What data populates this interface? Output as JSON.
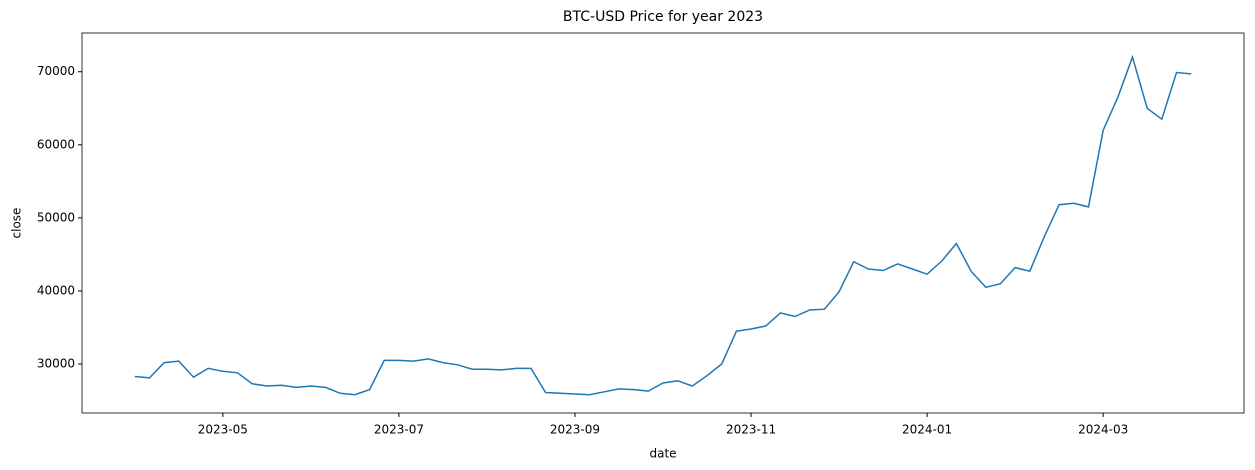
{
  "chart_data": {
    "type": "line",
    "title": "BTC-USD Price for year 2023",
    "x_label": "date",
    "y_label": "close",
    "x": [
      "2023-04",
      "2023-04",
      "2023-04",
      "2023-04",
      "2023-04",
      "2023-04",
      "2023-05",
      "2023-05",
      "2023-05",
      "2023-05",
      "2023-05",
      "2023-05",
      "2023-06",
      "2023-06",
      "2023-06",
      "2023-06",
      "2023-06",
      "2023-06",
      "2023-07",
      "2023-07",
      "2023-07",
      "2023-07",
      "2023-07",
      "2023-07",
      "2023-08",
      "2023-08",
      "2023-08",
      "2023-08",
      "2023-08",
      "2023-08",
      "2023-09",
      "2023-09",
      "2023-09",
      "2023-09",
      "2023-09",
      "2023-09",
      "2023-10",
      "2023-10",
      "2023-10",
      "2023-10",
      "2023-10",
      "2023-10",
      "2023-11",
      "2023-11",
      "2023-11",
      "2023-11",
      "2023-11",
      "2023-11",
      "2023-12",
      "2023-12",
      "2023-12",
      "2023-12",
      "2023-12",
      "2023-12",
      "2024-01",
      "2024-01",
      "2024-01",
      "2024-01",
      "2024-01",
      "2024-01",
      "2024-02",
      "2024-02",
      "2024-02",
      "2024-02",
      "2024-02",
      "2024-02",
      "2024-03",
      "2024-03",
      "2024-03",
      "2024-03",
      "2024-03",
      "2024-03",
      "2024-04"
    ],
    "series": [
      {
        "name": "close",
        "color": "#1f77b4",
        "values": [
          28300,
          28100,
          30200,
          30400,
          28200,
          29400,
          29000,
          28800,
          27300,
          27000,
          27100,
          26800,
          27000,
          26800,
          26000,
          25800,
          26500,
          30500,
          30500,
          30400,
          30700,
          30200,
          29900,
          29300,
          29300,
          29200,
          29400,
          29400,
          26100,
          26000,
          25900,
          25800,
          26200,
          26600,
          26500,
          26300,
          27400,
          27700,
          27000,
          28400,
          30000,
          34500,
          34800,
          35200,
          37000,
          36500,
          37400,
          37500,
          39900,
          44000,
          43000,
          42800,
          43700,
          43000,
          42300,
          44100,
          46500,
          42700,
          40500,
          41000,
          43200,
          42700,
          47500,
          51800,
          52000,
          51500,
          62000,
          66500,
          72000,
          65000,
          63500,
          69900,
          69700
        ]
      }
    ],
    "ylim": [
      23300,
      75300
    ],
    "yticks": [
      30000,
      40000,
      50000,
      60000,
      70000
    ],
    "xticks": [
      "2023-05",
      "2023-07",
      "2023-09",
      "2023-11",
      "2024-01",
      "2024-03"
    ]
  }
}
